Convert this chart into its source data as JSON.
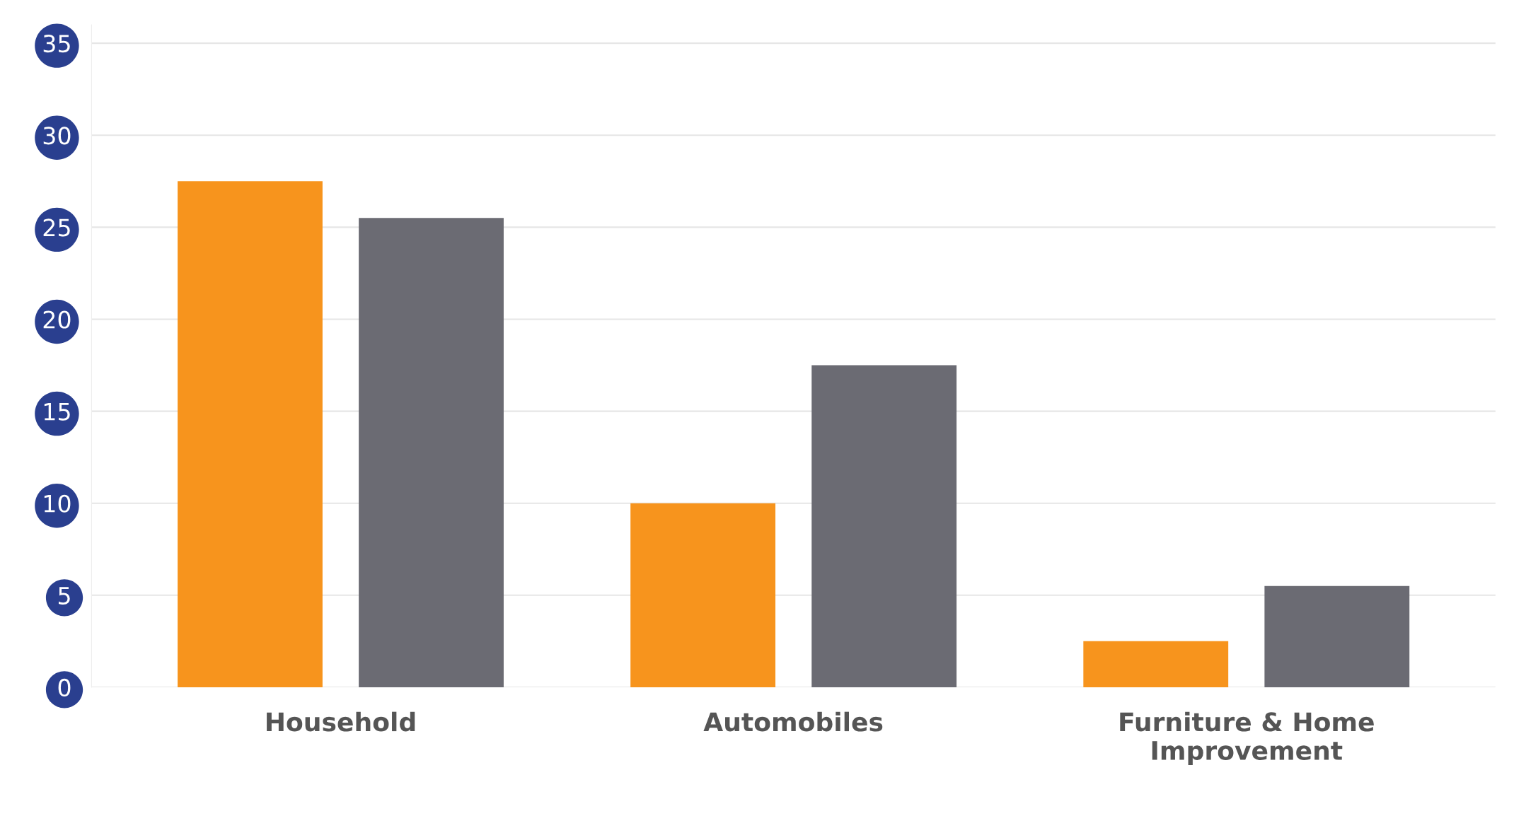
{
  "chart_data": {
    "type": "bar",
    "categories": [
      "Household",
      "Automobiles",
      "Furniture & Home\nImprovement"
    ],
    "series": [
      {
        "color": "#f7941d",
        "values": [
          27.5,
          10,
          2.5
        ]
      },
      {
        "color": "#6b6b73",
        "values": [
          25.5,
          17.5,
          5.5
        ]
      }
    ],
    "ylim": [
      0,
      36
    ],
    "yticks": [
      0,
      5,
      10,
      15,
      20,
      25,
      30,
      35
    ],
    "grid": "y",
    "legend": false
  }
}
